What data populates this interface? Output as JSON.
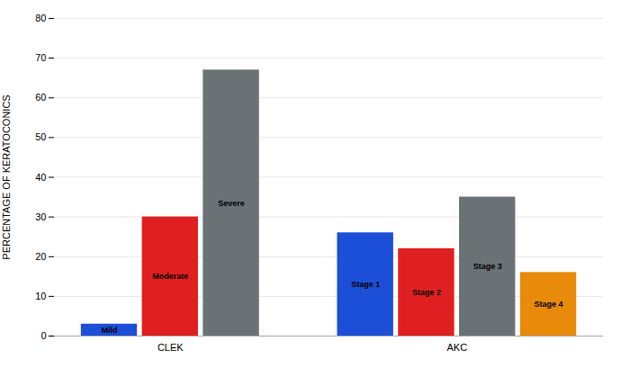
{
  "chart_data": {
    "type": "bar",
    "categories": [
      "CLEK",
      "AKC"
    ],
    "series": [
      {
        "name": "Mild",
        "color": "#1B4FD8",
        "values": [
          3,
          null
        ]
      },
      {
        "name": "Moderate",
        "color": "#E02020",
        "values": [
          30,
          null
        ]
      },
      {
        "name": "Severe",
        "color": "#6B7275",
        "values": [
          67,
          null
        ]
      },
      {
        "name": "Stage 1",
        "color": "#1B4FD8",
        "values": [
          null,
          26
        ]
      },
      {
        "name": "Stage 2",
        "color": "#E02020",
        "values": [
          null,
          22
        ]
      },
      {
        "name": "Stage 3",
        "color": "#6B7275",
        "values": [
          null,
          35
        ]
      },
      {
        "name": "Stage 4",
        "color": "#E88A0A",
        "values": [
          null,
          16
        ]
      }
    ],
    "ylabel": "PERCENTAGE OF KERATOCONICS",
    "ylim": [
      0,
      80
    ],
    "yticks": [
      0,
      10,
      20,
      30,
      40,
      50,
      60,
      70,
      80
    ],
    "grid": true
  }
}
